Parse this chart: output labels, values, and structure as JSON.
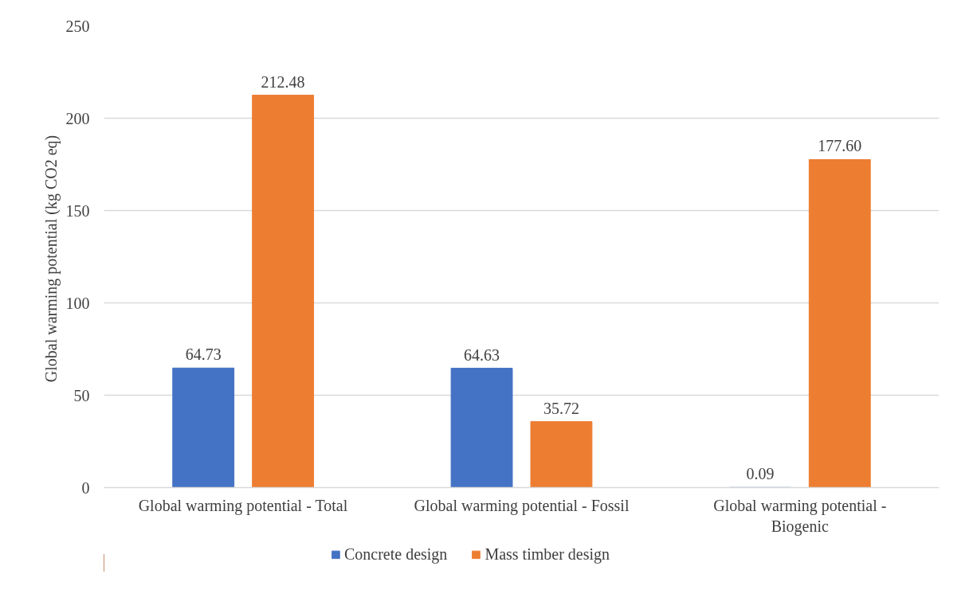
{
  "chart_data": {
    "type": "bar",
    "ylabel": "Global warming potential  (kg CO2 eq)",
    "categories": [
      "Global warming potential - Total",
      "Global warming potential - Fossil",
      "Global warming potential - Biogenic"
    ],
    "series": [
      {
        "name": "Concrete design",
        "color": "#4472c4",
        "values": [
          64.73,
          64.63,
          0.09
        ],
        "value_labels": [
          "64.73",
          "64.63",
          "0.09"
        ]
      },
      {
        "name": "Mass timber design",
        "color": "#ed7d31",
        "values": [
          212.48,
          35.72,
          177.6
        ],
        "value_labels": [
          "212.48",
          "35.72",
          "177.60"
        ]
      }
    ],
    "ylim": [
      0,
      250
    ],
    "yticks": [
      0,
      50,
      100,
      150,
      200,
      250
    ],
    "grid": "y",
    "legend": "bottom"
  }
}
